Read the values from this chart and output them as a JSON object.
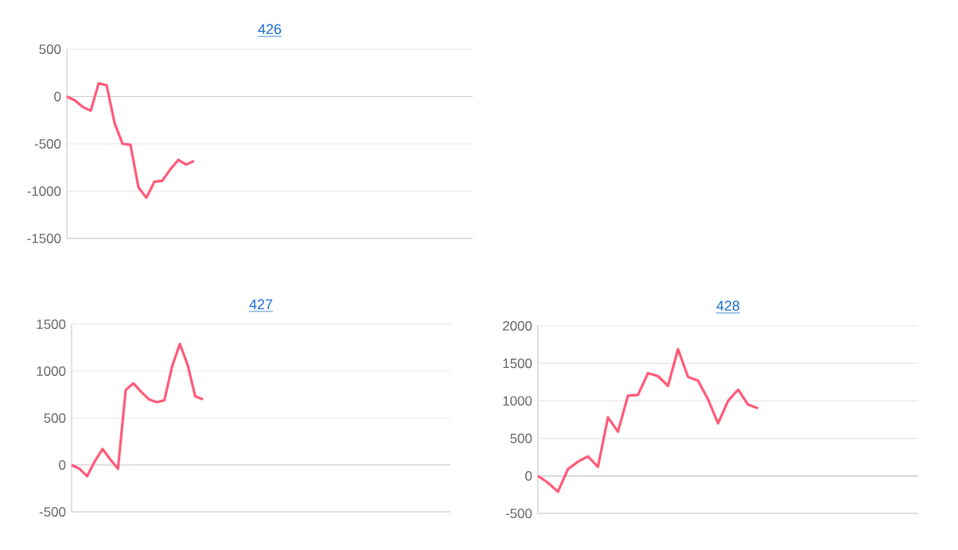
{
  "chart_data": [
    {
      "type": "line",
      "title": "426",
      "categories": [
        null,
        null,
        null,
        null,
        null,
        null,
        null,
        null,
        null,
        null,
        null,
        null,
        null,
        null,
        null,
        null,
        null,
        null,
        null,
        null,
        null,
        null,
        null,
        null,
        null,
        null,
        null,
        null,
        null,
        null,
        null,
        null,
        null,
        null,
        null,
        null,
        null,
        null,
        null,
        null,
        null,
        null,
        null,
        null,
        null,
        null,
        null,
        null,
        null,
        null,
        null,
        null
      ],
      "values": [
        0,
        -40,
        -110,
        -150,
        140,
        120,
        -280,
        -500,
        -510,
        -960,
        -1070,
        -900,
        -890,
        -770,
        -670,
        -720,
        -680,
        null,
        null,
        null,
        null,
        null,
        null,
        null,
        null,
        null,
        null,
        null,
        null,
        null,
        null,
        null,
        null,
        null,
        null,
        null,
        null,
        null,
        null,
        null,
        null,
        null,
        null,
        null,
        null,
        null,
        null,
        null,
        null,
        null,
        null,
        null
      ],
      "color": "#ff5a78",
      "ylim": [
        -1500,
        500
      ],
      "yticks": [
        -1500,
        -1000,
        -500,
        0,
        500
      ],
      "grid": "y",
      "tick_labels": "y"
    },
    {
      "type": "line",
      "title": "427",
      "categories": [
        null,
        null,
        null,
        null,
        null,
        null,
        null,
        null,
        null,
        null,
        null,
        null,
        null,
        null,
        null,
        null,
        null,
        null,
        null,
        null,
        null,
        null,
        null,
        null,
        null,
        null,
        null,
        null,
        null,
        null,
        null,
        null,
        null,
        null,
        null,
        null,
        null,
        null,
        null,
        null,
        null,
        null,
        null,
        null,
        null,
        null,
        null,
        null,
        null,
        null
      ],
      "values": [
        0,
        -40,
        -120,
        40,
        170,
        60,
        -40,
        800,
        870,
        780,
        700,
        670,
        690,
        1050,
        1290,
        1070,
        730,
        700,
        null,
        null,
        null,
        null,
        null,
        null,
        null,
        null,
        null,
        null,
        null,
        null,
        null,
        null,
        null,
        null,
        null,
        null,
        null,
        null,
        null,
        null,
        null,
        null,
        null,
        null,
        null,
        null,
        null,
        null,
        null,
        null
      ],
      "color": "#ff5a78",
      "ylim": [
        -500,
        1500
      ],
      "yticks": [
        -500,
        0,
        500,
        1000,
        1500
      ],
      "grid": "y",
      "tick_labels": "y"
    },
    {
      "type": "line",
      "title": "428",
      "categories": [
        null,
        null,
        null,
        null,
        null,
        null,
        null,
        null,
        null,
        null,
        null,
        null,
        null,
        null,
        null,
        null,
        null,
        null,
        null,
        null,
        null,
        null,
        null,
        null,
        null,
        null,
        null,
        null,
        null,
        null,
        null,
        null,
        null,
        null,
        null,
        null,
        null,
        null,
        null
      ],
      "values": [
        0,
        -90,
        -210,
        90,
        190,
        260,
        120,
        780,
        590,
        1070,
        1080,
        1370,
        1330,
        1200,
        1690,
        1320,
        1270,
        1020,
        700,
        1000,
        1150,
        950,
        900,
        null,
        null,
        null,
        null,
        null,
        null,
        null,
        null,
        null,
        null,
        null,
        null,
        null,
        null,
        null,
        null
      ],
      "color": "#ff5a78",
      "ylim": [
        -500,
        2000
      ],
      "yticks": [
        -500,
        0,
        500,
        1000,
        1500,
        2000
      ],
      "grid": "y",
      "tick_labels": "y"
    }
  ]
}
